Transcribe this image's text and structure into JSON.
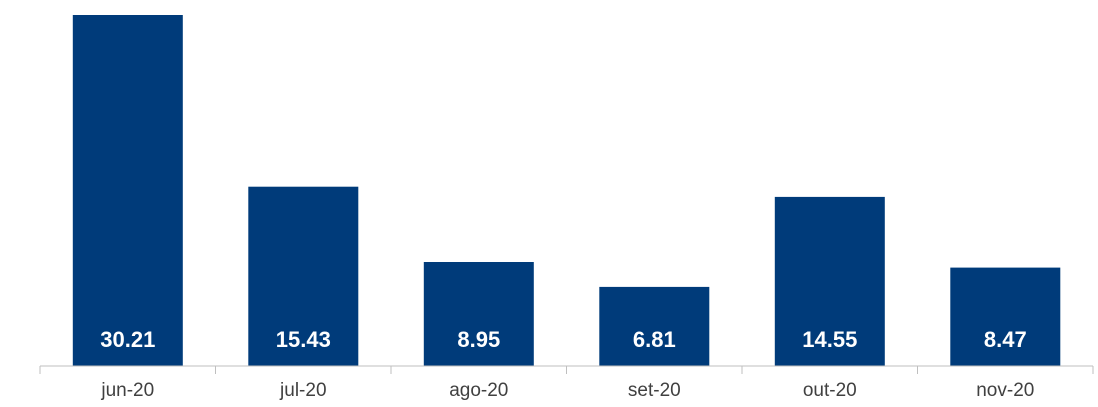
{
  "chart_data": {
    "type": "bar",
    "categories": [
      "jun-20",
      "jul-20",
      "ago-20",
      "set-20",
      "out-20",
      "nov-20"
    ],
    "values": [
      30.21,
      15.43,
      8.95,
      6.81,
      14.55,
      8.47
    ],
    "value_labels": [
      "30.21",
      "15.43",
      "8.95",
      "6.81",
      "14.55",
      "8.47"
    ],
    "title": "",
    "xlabel": "",
    "ylabel": "",
    "ylim": [
      0,
      30.21
    ],
    "grid": false,
    "legend": "none",
    "bar_color": "#003b7a",
    "label_color": "#ffffff",
    "axis_color": "#bfbfbf",
    "tick_label_color": "#404040"
  }
}
